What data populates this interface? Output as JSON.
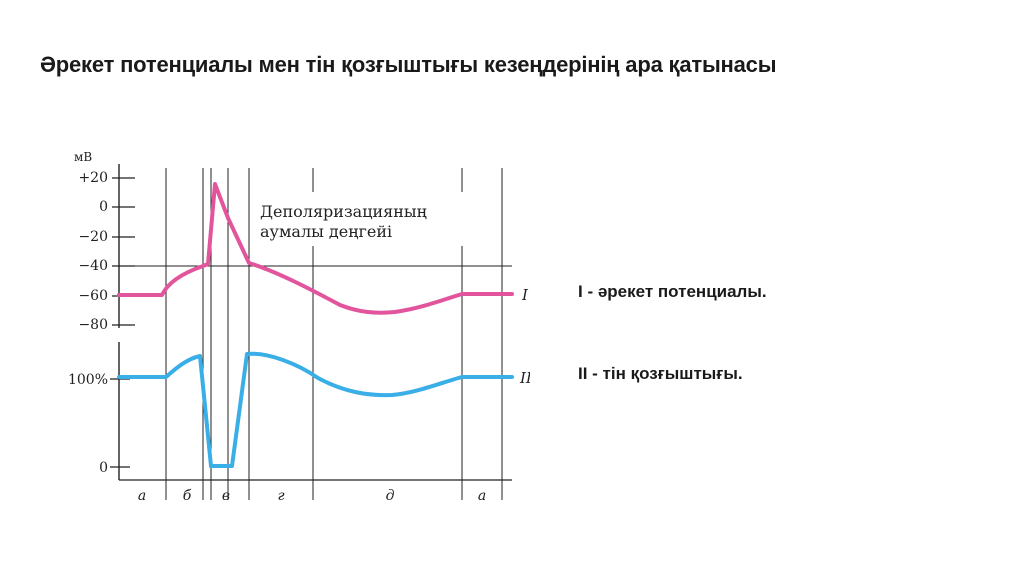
{
  "slide": {
    "title": "Әрекет потенциалы мен тін қозғыштығы кезеңдерінің ара қатынасы"
  },
  "legend": {
    "items": [
      {
        "label": "I - әрекет потенциалы."
      },
      {
        "label": "II - тін қозғыштығы."
      }
    ]
  },
  "diagram": {
    "unit_label": "мВ",
    "y_ticks_top": [
      "+20",
      "0",
      "−20",
      "−40",
      "−60",
      "−80"
    ],
    "y_ticks_bottom": [
      "100%",
      "0"
    ],
    "phase_labels": [
      "а",
      "б",
      "в",
      "г",
      "д",
      "а"
    ],
    "curve_labels": [
      "I",
      "II"
    ],
    "annotation_line1": "Деполяризацияның",
    "annotation_line2": "аумалы деңгейі",
    "colors": {
      "potential": "#e2559c",
      "excitability": "#3aaee6",
      "ink": "#222222"
    }
  }
}
